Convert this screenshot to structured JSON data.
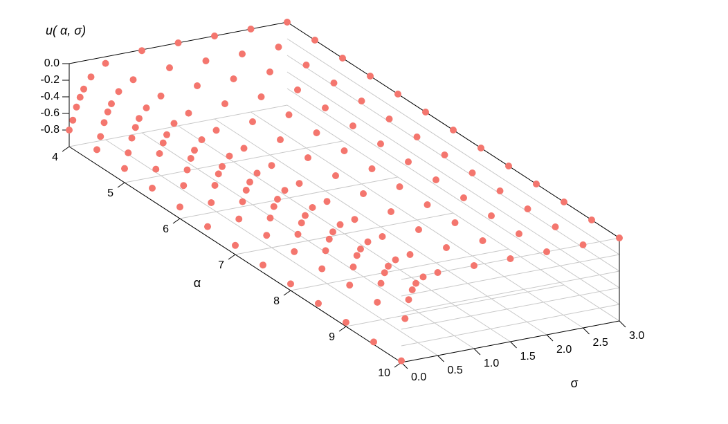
{
  "chart_data": {
    "type": "scatter3d",
    "zlabel": "u( α, σ)",
    "xlabel": "α",
    "ylabel": "σ",
    "color": "#f4766e",
    "grid": true,
    "alpha": [
      4,
      4.5,
      5,
      5.5,
      6,
      6.5,
      7,
      7.5,
      8,
      8.5,
      9,
      9.5,
      10
    ],
    "sigma": [
      0,
      0.05,
      0.1,
      0.15,
      0.2,
      0.3,
      0.5,
      1,
      1.5,
      2,
      2.5,
      3
    ],
    "z": [
      [
        -0.8,
        -0.69,
        -0.54,
        -0.43,
        -0.34,
        -0.21,
        -0.08,
        -0.01,
        0,
        0,
        0,
        0
      ],
      [
        -0.82,
        -0.67,
        -0.51,
        -0.39,
        -0.3,
        -0.17,
        -0.06,
        0,
        0,
        0,
        0,
        0
      ],
      [
        -0.83,
        -0.65,
        -0.48,
        -0.36,
        -0.26,
        -0.15,
        -0.04,
        0,
        0,
        0,
        0,
        0
      ],
      [
        -0.85,
        -0.63,
        -0.45,
        -0.33,
        -0.24,
        -0.12,
        -0.03,
        0,
        0,
        0,
        0,
        0
      ],
      [
        -0.86,
        -0.61,
        -0.43,
        -0.3,
        -0.21,
        -0.1,
        -0.02,
        0,
        0,
        0,
        0,
        0
      ],
      [
        -0.88,
        -0.6,
        -0.4,
        -0.27,
        -0.19,
        -0.08,
        -0.02,
        0,
        0,
        0,
        0,
        0
      ],
      [
        -0.89,
        -0.58,
        -0.38,
        -0.25,
        -0.16,
        -0.07,
        -0.01,
        0,
        0,
        0,
        0,
        0
      ],
      [
        -0.91,
        -0.56,
        -0.36,
        -0.23,
        -0.15,
        -0.06,
        -0.01,
        0,
        0,
        0,
        0,
        0
      ],
      [
        -0.92,
        -0.54,
        -0.34,
        -0.21,
        -0.13,
        -0.05,
        -0.01,
        0,
        0,
        0,
        0,
        0
      ],
      [
        -0.94,
        -0.53,
        -0.32,
        -0.19,
        -0.11,
        -0.04,
        -0.01,
        0,
        0,
        0,
        0,
        0
      ],
      [
        -0.95,
        -0.51,
        -0.3,
        -0.17,
        -0.1,
        -0.03,
        0,
        0,
        0,
        0,
        0,
        0
      ],
      [
        -0.97,
        -0.5,
        -0.28,
        -0.16,
        -0.09,
        -0.03,
        0,
        0,
        0,
        0,
        0,
        0
      ],
      [
        -0.98,
        -0.48,
        -0.26,
        -0.15,
        -0.08,
        -0.02,
        0,
        0,
        0,
        0,
        0,
        0
      ]
    ],
    "xlim": [
      4,
      10
    ],
    "ylim": [
      0,
      3
    ],
    "zlim": [
      -1,
      0
    ],
    "xticks": [
      4,
      5,
      6,
      7,
      8,
      9,
      10
    ],
    "yticks": [
      {
        "value": 0,
        "label": "0.0"
      },
      0.5,
      {
        "value": 1,
        "label": "1.0"
      },
      1.5,
      {
        "value": 2,
        "label": "2.0"
      },
      2.5,
      {
        "value": 3,
        "label": "3.0"
      }
    ],
    "zticks": [
      {
        "value": 0,
        "label": "0.0"
      },
      -0.2,
      -0.4,
      -0.6,
      -0.8
    ]
  }
}
